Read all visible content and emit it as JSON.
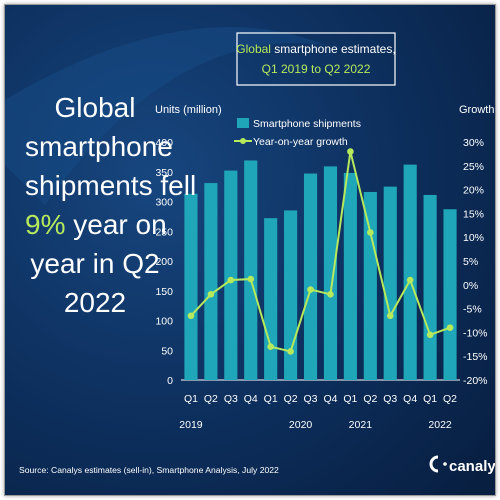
{
  "headline": {
    "line1": "Global",
    "line2": "smartphone",
    "line3": "shipments fell",
    "highlight": "9%",
    "line4_rest": " year on",
    "line5": "year in Q2",
    "line6": "2022"
  },
  "chart_title": {
    "accent_word": "Global",
    "rest_line1": " smartphone estimates,",
    "line2": "Q1 2019 to Q2 2022"
  },
  "source_text": "Source: Canalys estimates (sell-in), Smartphone Analysis, July 2022",
  "brand": {
    "name": "canalys",
    "logo_icon": "canalys-logo-icon"
  },
  "colors": {
    "background": "#0c2d5a",
    "bar": "#1fa6b8",
    "line": "#b6e95c",
    "accent": "#b6e95c",
    "text": "#ffffff"
  },
  "chart_data": {
    "type": "bar",
    "title": "Global smartphone estimates, Q1 2019 to Q2 2022",
    "ylabel_left": "Units (million)",
    "ylabel_right": "Growth",
    "left_axis": {
      "min": 0,
      "max": 400,
      "ticks": [
        0,
        50,
        100,
        150,
        200,
        250,
        300,
        350,
        400
      ]
    },
    "right_axis": {
      "min": -20,
      "max": 30,
      "ticks": [
        "-20%",
        "-15%",
        "-10%",
        "-5%",
        "0%",
        "5%",
        "10%",
        "15%",
        "20%",
        "25%",
        "30%"
      ]
    },
    "categories": [
      "Q1",
      "Q2",
      "Q3",
      "Q4",
      "Q1",
      "Q2",
      "Q3",
      "Q4",
      "Q1",
      "Q2",
      "Q3",
      "Q4",
      "Q1",
      "Q2"
    ],
    "year_labels": [
      {
        "label": "2019",
        "index": 0
      },
      {
        "label": "2020",
        "index": 5.5
      },
      {
        "label": "2021",
        "index": 8.5
      },
      {
        "label": "2022",
        "index": 12.5
      }
    ],
    "legend": [
      "Smartphone shipments",
      "Year-on-year growth"
    ],
    "series": [
      {
        "name": "Smartphone shipments",
        "type": "bar",
        "axis": "left",
        "values": [
          313,
          331,
          352,
          369,
          272,
          285,
          347,
          359,
          348,
          316,
          325,
          362,
          311,
          287
        ]
      },
      {
        "name": "Year-on-year growth",
        "type": "line",
        "axis": "right",
        "values": [
          -6.5,
          -2,
          1,
          1.2,
          -13,
          -14,
          -1,
          -2,
          28,
          11,
          -6.5,
          1,
          -10.5,
          -9
        ]
      }
    ]
  }
}
